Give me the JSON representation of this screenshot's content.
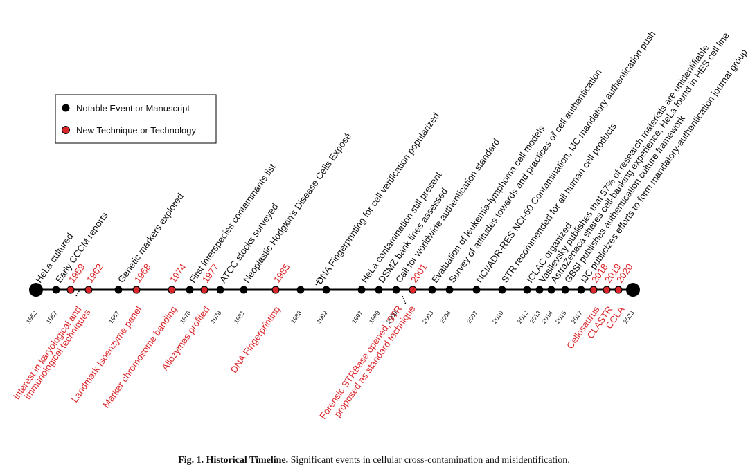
{
  "legend": {
    "notable": "Notable Event or Manuscript",
    "technique": "New Technique or Technology"
  },
  "colors": {
    "notable": "#000000",
    "technique": "#d8262a",
    "red_text": "#d8262a"
  },
  "caption": {
    "prefix": "Fig. 1.",
    "title": "Historical Timeline.",
    "text": "Significant events in cellular cross-contamination and misidentification."
  },
  "endpoints": [
    "1952",
    "2023"
  ],
  "tick_years": [
    "1952",
    "1957",
    "1967",
    "1976",
    "1978",
    "1981",
    "1988",
    "1992",
    "1997",
    "1999",
    "2000",
    "2003",
    "2004",
    "2007",
    "2010",
    "2012",
    "2013",
    "2014",
    "2015",
    "2017",
    "2023"
  ],
  "events_above": [
    {
      "year": "1952",
      "label": "HeLa cultured",
      "type": "notable"
    },
    {
      "year": "1957",
      "label": "Early CCCM reports",
      "type": "notable"
    },
    {
      "year": "1967",
      "label": "Genetic markers explored",
      "type": "notable"
    },
    {
      "year": "1976",
      "label": "First interspecies contaminants list",
      "type": "notable"
    },
    {
      "year": "1978",
      "label": "ATCC stocks surveyed",
      "type": "notable"
    },
    {
      "year": "1981",
      "label": "Neoplastic Hodgkin's Disease Cells Exposé",
      "type": "notable"
    },
    {
      "year": "1992",
      "label": "DNA Fingerprinting for cell verification popularized",
      "type": "notable"
    },
    {
      "year": "1997",
      "label": "HeLa contamination still present",
      "type": "notable"
    },
    {
      "year": "1999",
      "label": "DSMZ bank lines assessed",
      "type": "notable"
    },
    {
      "year": "2000",
      "label": "Call for worldwide authentication standard",
      "type": "notable"
    },
    {
      "year": "2003",
      "label": "Evaluation of leukemia-lymphoma cell models",
      "type": "notable"
    },
    {
      "year": "2004",
      "label": "Survey of attitudes towards and practices of cell authentication",
      "type": "notable"
    },
    {
      "year": "2007",
      "label": "NCI/ADR-RES NCI-60 Contamination, IJC mandatory authentication push",
      "type": "notable"
    },
    {
      "year": "2010",
      "label": "STR recommended for all human cell products",
      "type": "notable"
    },
    {
      "year": "2012",
      "label": "ICLAC organized",
      "type": "notable"
    },
    {
      "year": "2013",
      "label": "Vasilevsky publishes that 57% of research materials are unidentifiable",
      "type": "notable"
    },
    {
      "year": "2014",
      "label": "AstraZeneca shares cell-banking experience, HeLa found in HES cell line",
      "type": "notable"
    },
    {
      "year": "2015",
      "label": "GBSI publishes authentication culture framework",
      "type": "notable"
    },
    {
      "year": "2017",
      "label": "IJC publicizes efforts to form mandatory-authentication journal group",
      "type": "notable"
    }
  ],
  "technique_years": [
    "1959",
    "1962",
    "1968",
    "1974",
    "1977",
    "1985",
    "2001",
    "2018",
    "2019",
    "2020"
  ],
  "events_below": [
    {
      "year": "1959",
      "label_lines": [
        "Interest in karyological and",
        "immunological techniques"
      ]
    },
    {
      "year": "1968",
      "label_lines": [
        "Landmark Isoenzyme panel"
      ]
    },
    {
      "year": "1974",
      "label_lines": [
        "Marker chromosome banding"
      ]
    },
    {
      "year": "1977",
      "label_lines": [
        "Allozymes profiled"
      ]
    },
    {
      "year": "1985",
      "label_lines": [
        "DNA Fingerprinting"
      ]
    },
    {
      "year": "2001",
      "label_lines": [
        "Forensic STRBase opened, STR",
        "proposed as standard technique"
      ]
    },
    {
      "year": "2018",
      "label_lines": [
        "Cellosaurus"
      ]
    },
    {
      "year": "2019",
      "label_lines": [
        "CLASTR"
      ]
    },
    {
      "year": "2020",
      "label_lines": [
        "CCLA"
      ]
    }
  ]
}
